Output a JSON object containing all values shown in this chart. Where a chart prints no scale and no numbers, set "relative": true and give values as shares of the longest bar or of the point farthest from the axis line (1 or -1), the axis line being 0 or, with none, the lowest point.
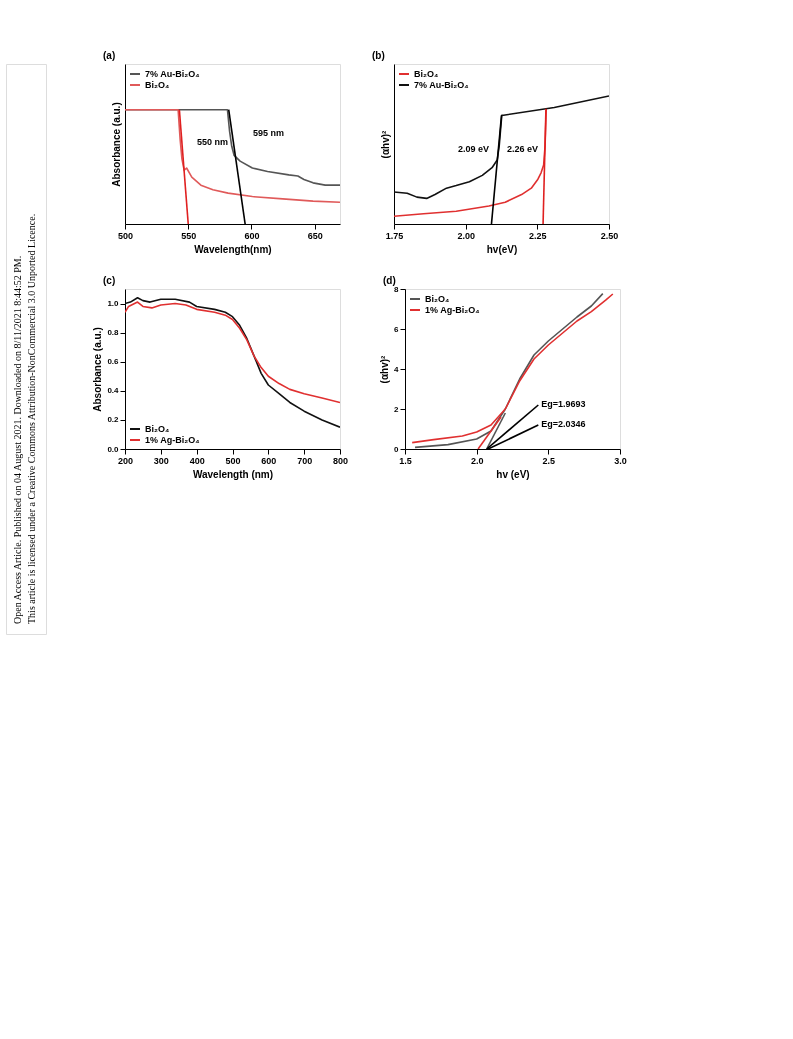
{
  "chart_data": [
    {
      "type": "line",
      "title": "(a)",
      "xlabel": "Wavelength(nm)",
      "ylabel": "Absorbance (a.u.)",
      "relative": true,
      "xlim": [
        500,
        670
      ],
      "xticks": [
        500,
        550,
        600,
        650
      ],
      "legend": "top left",
      "grid": false,
      "series": [
        {
          "name": "7% Au-Bi₂O₄",
          "color": "#555555",
          "x": [
            500,
            581,
            582.7,
            584.4,
            586.3,
            591,
            600.7,
            612.7,
            629.5,
            636.7,
            641.5,
            648.7,
            658.3,
            670
          ],
          "values": [
            1.0,
            1.0,
            0.81,
            0.68,
            0.6,
            0.55,
            0.49,
            0.46,
            0.43,
            0.42,
            0.39,
            0.36,
            0.34,
            0.34
          ]
        },
        {
          "name": "Bi₂O₄",
          "color": "#e05a5a",
          "x": [
            500,
            542,
            543.6,
            545,
            546.8,
            548.7,
            552.8,
            560,
            569.5,
            581.5,
            600.7,
            624.7,
            648.7,
            670
          ],
          "values": [
            1.0,
            1.0,
            0.74,
            0.57,
            0.47,
            0.49,
            0.41,
            0.34,
            0.3,
            0.27,
            0.24,
            0.22,
            0.2,
            0.19
          ]
        },
        {
          "color": "#e02020",
          "x": [
            543,
            550
          ],
          "values": [
            1.0,
            0
          ]
        },
        {
          "color": "#000000",
          "x": [
            582,
            595
          ],
          "values": [
            1.0,
            0
          ]
        }
      ],
      "annotations": [
        "Open Access Article. Published on 04 August 2021. Downloaded on 8/11/2021 8:44:52 PM.",
        "This article is licensed under a Creative Commons Attribution-NonCommercial 3.0 Unported Licence.",
        "550 nm",
        "595 nm"
      ]
    },
    {
      "type": "line",
      "title": "(b)",
      "xlabel": "hv(eV)",
      "ylabel": "(αhv)²",
      "relative": true,
      "xlim": [
        1.75,
        2.5
      ],
      "xticks": [
        1.75,
        {
          "value": 2.0,
          "label": "2.00"
        },
        2.25,
        {
          "value": 2.5,
          "label": "2.50"
        }
      ],
      "legend": "top left",
      "grid": false,
      "series": [
        {
          "name": "Bi₂O₄",
          "color": "#e03030",
          "x": [
            1.75,
            1.853,
            1.967,
            2.081,
            2.138,
            2.195,
            2.229,
            2.252,
            2.263,
            2.272,
            2.277,
            2.281
          ],
          "values": [
            0.06,
            0.08,
            0.1,
            0.14,
            0.17,
            0.23,
            0.28,
            0.35,
            0.4,
            0.46,
            0.61,
            0.9
          ]
        },
        {
          "name": "7% Au-Bi₂O₄",
          "color": "#111111",
          "x": [
            1.75,
            1.796,
            1.83,
            1.864,
            1.893,
            1.933,
            1.967,
            2.013,
            2.058,
            2.092,
            2.11,
            2.117,
            2.126,
            2.132,
            2.309,
            2.5
          ],
          "values": [
            0.25,
            0.24,
            0.21,
            0.2,
            0.23,
            0.28,
            0.3,
            0.33,
            0.38,
            0.44,
            0.5,
            0.61,
            0.85,
            0.85,
            0.91,
            1.0
          ]
        },
        {
          "color": "#e02020",
          "x": [
            2.28,
            2.27
          ],
          "values": [
            0.9,
            0
          ]
        },
        {
          "color": "#000000",
          "x": [
            2.125,
            2.09
          ],
          "values": [
            0.85,
            0
          ]
        }
      ],
      "annotations": [
        "2.09 eV",
        "2.26 eV"
      ]
    },
    {
      "type": "line",
      "title": "(c)",
      "xlabel": "Wavelength (nm)",
      "ylabel": "Absorbance (a.u.)",
      "xlim": [
        200,
        800
      ],
      "xticks": [
        200,
        300,
        400,
        500,
        600,
        700,
        800
      ],
      "ylim": [
        0,
        1.1
      ],
      "yticks": [
        {
          "value": 0,
          "label": "0.0"
        },
        0.2,
        0.4,
        0.6,
        0.8,
        {
          "value": 1,
          "label": "1.0"
        }
      ],
      "legend": "bottom left",
      "grid": false,
      "series": [
        {
          "name": "Bi₂O₄",
          "color": "#111111",
          "x": [
            200,
            215,
            235,
            250,
            270,
            300,
            340,
            380,
            400,
            450,
            480,
            500,
            520,
            540,
            560,
            580,
            600,
            630,
            660,
            700,
            750,
            800
          ],
          "values": [
            1.0,
            1.01,
            1.04,
            1.02,
            1.01,
            1.03,
            1.03,
            1.01,
            0.98,
            0.96,
            0.94,
            0.91,
            0.85,
            0.76,
            0.64,
            0.52,
            0.44,
            0.38,
            0.32,
            0.26,
            0.2,
            0.15
          ]
        },
        {
          "name": "1% Ag-Bi₂O₄",
          "color": "#e03030",
          "x": [
            200,
            210,
            235,
            250,
            275,
            300,
            340,
            370,
            400,
            450,
            480,
            500,
            520,
            540,
            560,
            580,
            600,
            630,
            660,
            700,
            750,
            800
          ],
          "values": [
            0.94,
            0.98,
            1.01,
            0.98,
            0.97,
            0.99,
            1.0,
            0.99,
            0.96,
            0.94,
            0.92,
            0.89,
            0.83,
            0.75,
            0.64,
            0.56,
            0.5,
            0.45,
            0.41,
            0.38,
            0.35,
            0.32
          ]
        }
      ]
    },
    {
      "type": "line",
      "title": "(d)",
      "xlabel": "hv (eV)",
      "ylabel": "(αhv)²",
      "xlim": [
        1.5,
        3.0
      ],
      "xticks": [
        1.5,
        {
          "value": 2,
          "label": "2.0"
        },
        2.5,
        {
          "value": 3,
          "label": "3.0"
        }
      ],
      "ylim": [
        0,
        8
      ],
      "yticks": [
        0,
        2,
        4,
        6,
        8
      ],
      "legend": "top left",
      "grid": false,
      "series": [
        {
          "name": "Bi₂O₄",
          "color": "#555555",
          "x": [
            1.57,
            1.8,
            2.0,
            2.1,
            2.2,
            2.3,
            2.4,
            2.5,
            2.6,
            2.7,
            2.8,
            2.88
          ],
          "values": [
            0.08,
            0.22,
            0.5,
            0.9,
            2.0,
            3.5,
            4.7,
            5.4,
            6.0,
            6.6,
            7.15,
            7.77
          ]
        },
        {
          "name": "1% Ag-Bi₂O₄",
          "color": "#e03030",
          "x": [
            1.55,
            1.7,
            1.9,
            2.0,
            2.1,
            2.2,
            2.3,
            2.4,
            2.5,
            2.6,
            2.7,
            2.8,
            2.9,
            2.95
          ],
          "values": [
            0.32,
            0.47,
            0.65,
            0.85,
            1.2,
            2.0,
            3.4,
            4.5,
            5.2,
            5.8,
            6.4,
            6.87,
            7.44,
            7.75
          ]
        },
        {
          "color": "#e03030",
          "x": [
            2.01,
            2.17
          ],
          "values": [
            0,
            1.6
          ]
        },
        {
          "color": "#555555",
          "x": [
            2.07,
            2.2
          ],
          "values": [
            0,
            1.8
          ]
        },
        {
          "color": "#000000",
          "x": [
            2.07,
            2.43
          ],
          "values": [
            0,
            2.2
          ]
        },
        {
          "color": "#000000",
          "x": [
            2.08,
            2.43
          ],
          "values": [
            0,
            1.2
          ]
        }
      ],
      "annotations": [
        {
          "text": "Eg=1.9693",
          "x": 2.45,
          "y": 2.25
        },
        {
          "text": "Eg=2.0346",
          "x": 2.45,
          "y": 1.25
        }
      ]
    }
  ]
}
